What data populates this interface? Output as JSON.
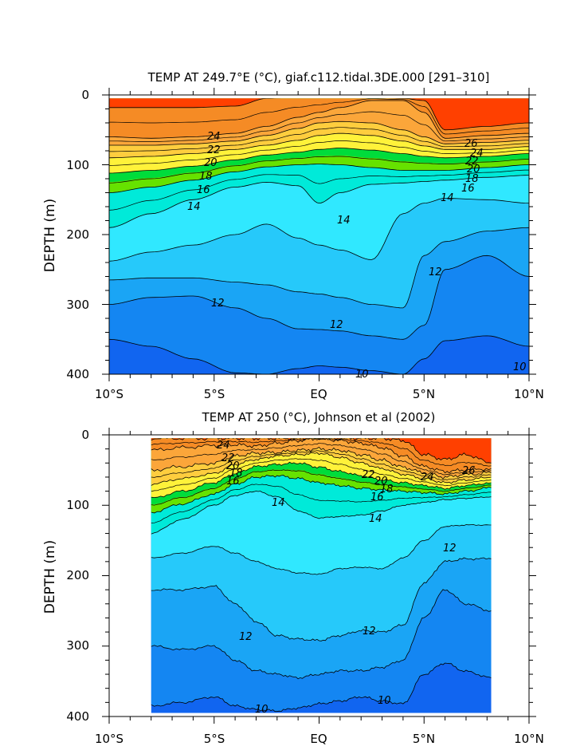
{
  "chart_data": [
    {
      "type": "contour",
      "title": "TEMP AT 249.7°E (°C), giaf.c112.tidal.3DE.000 [291–310]",
      "xlabel": "",
      "ylabel": "DEPTH (m)",
      "xlim": [
        -10,
        10
      ],
      "ylim": [
        0,
        400
      ],
      "y_inverted": true,
      "data_x_extent": [
        -10,
        10
      ],
      "data_depth_top": 5,
      "x_ticks": [
        -10,
        -5,
        0,
        5,
        10
      ],
      "x_tick_labels": [
        "10°S",
        "5°S",
        "EQ",
        "5°N",
        "10°N"
      ],
      "y_ticks": [
        0,
        100,
        200,
        300,
        400
      ],
      "y_tick_labels": [
        "0",
        "100",
        "200",
        "300",
        "400"
      ],
      "x_sections": [
        -10,
        -8,
        -6,
        -4,
        -2.5,
        -1,
        0,
        1,
        2.5,
        4,
        5,
        6,
        8,
        10
      ],
      "isotherms": [
        {
          "t": 26,
          "depth": [
            18,
            18,
            18,
            16,
            5,
            3,
            3,
            3,
            3,
            5,
            8,
            50,
            45,
            40
          ]
        },
        {
          "t": 24,
          "depth": [
            60,
            62,
            60,
            55,
            45,
            32,
            25,
            18,
            8,
            8,
            25,
            62,
            58,
            55
          ]
        },
        {
          "t": 22,
          "depth": [
            72,
            72,
            70,
            66,
            58,
            48,
            40,
            38,
            40,
            50,
            60,
            70,
            68,
            65
          ]
        },
        {
          "t": 20,
          "depth": [
            90,
            88,
            84,
            78,
            72,
            65,
            58,
            55,
            58,
            66,
            73,
            78,
            78,
            74
          ]
        },
        {
          "t": 18,
          "depth": [
            112,
            108,
            102,
            93,
            86,
            82,
            78,
            76,
            79,
            84,
            88,
            90,
            88,
            84
          ]
        },
        {
          "t": 16,
          "depth": [
            140,
            132,
            122,
            110,
            103,
            100,
            99,
            100,
            104,
            108,
            108,
            108,
            104,
            100
          ]
        },
        {
          "t": 14,
          "depth": [
            190,
            170,
            150,
            132,
            125,
            130,
            155,
            140,
            128,
            126,
            124,
            122,
            118,
            115
          ]
        },
        {
          "t": 13,
          "depth": [
            238,
            225,
            215,
            200,
            185,
            205,
            215,
            222,
            236,
            170,
            155,
            148,
            150,
            155
          ]
        },
        {
          "t": 12,
          "depth": [
            265,
            262,
            262,
            268,
            272,
            282,
            285,
            290,
            300,
            305,
            230,
            210,
            195,
            190
          ]
        },
        {
          "t": 11,
          "depth": [
            300,
            290,
            288,
            305,
            320,
            335,
            336,
            338,
            345,
            350,
            330,
            250,
            230,
            260
          ]
        },
        {
          "t": 10,
          "depth": [
            350,
            360,
            378,
            398,
            400,
            392,
            388,
            390,
            395,
            400,
            378,
            352,
            345,
            360
          ]
        }
      ],
      "contour_labels": [
        "24",
        "22",
        "20",
        "18",
        "16",
        "14",
        "26",
        "24",
        "22",
        "20",
        "18",
        "16",
        "14",
        "14",
        "12",
        "12",
        "12",
        "10",
        "10"
      ]
    },
    {
      "type": "contour",
      "title": "TEMP AT 250 (°C), Johnson et al (2002)",
      "xlabel": "",
      "ylabel": "DEPTH (m)",
      "xlim": [
        -10,
        10
      ],
      "ylim": [
        0,
        400
      ],
      "y_inverted": true,
      "data_x_extent": [
        -8,
        8.2
      ],
      "data_depth_top": 5,
      "data_depth_bottom": 395,
      "x_ticks": [
        -10,
        -5,
        0,
        5,
        10
      ],
      "x_tick_labels": [
        "10°S",
        "5°S",
        "EQ",
        "5°N",
        "10°N"
      ],
      "y_ticks": [
        0,
        100,
        200,
        300,
        400
      ],
      "y_tick_labels": [
        "0",
        "100",
        "200",
        "300",
        "400"
      ],
      "x_sections": [
        -8,
        -6.5,
        -5,
        -4,
        -3,
        -2,
        -1,
        0,
        1,
        2,
        3,
        4,
        5,
        6,
        7,
        8.2
      ],
      "isotherms": [
        {
          "t": 26,
          "depth": [
            5,
            5,
            5,
            5,
            5,
            5,
            5,
            5,
            5,
            5,
            5,
            8,
            28,
            35,
            28,
            40
          ],
          "wiggle": 3
        },
        {
          "t": 24,
          "depth": [
            22,
            18,
            15,
            14,
            16,
            12,
            8,
            5,
            8,
            12,
            18,
            30,
            45,
            52,
            50,
            48
          ],
          "wiggle": 3
        },
        {
          "t": 22,
          "depth": [
            50,
            45,
            40,
            30,
            26,
            25,
            22,
            20,
            22,
            28,
            36,
            46,
            54,
            60,
            56,
            54
          ],
          "wiggle": 3
        },
        {
          "t": 20,
          "depth": [
            70,
            62,
            55,
            42,
            35,
            30,
            28,
            26,
            32,
            40,
            48,
            56,
            62,
            68,
            64,
            60
          ],
          "wiggle": 2
        },
        {
          "t": 18,
          "depth": [
            90,
            80,
            68,
            55,
            45,
            42,
            40,
            46,
            52,
            58,
            64,
            68,
            72,
            76,
            72,
            68
          ],
          "wiggle": 2
        },
        {
          "t": 16,
          "depth": [
            110,
            98,
            84,
            70,
            60,
            58,
            62,
            68,
            72,
            76,
            78,
            80,
            82,
            84,
            80,
            75
          ],
          "wiggle": 2
        },
        {
          "t": 14,
          "depth": [
            140,
            120,
            100,
            86,
            80,
            88,
            108,
            118,
            116,
            114,
            108,
            100,
            96,
            92,
            90,
            88
          ],
          "wiggle": 1
        },
        {
          "t": 13,
          "depth": [
            175,
            168,
            158,
            168,
            180,
            190,
            196,
            198,
            190,
            188,
            190,
            175,
            150,
            130,
            128,
            128
          ],
          "wiggle": 1
        },
        {
          "t": 12,
          "depth": [
            220,
            220,
            215,
            240,
            265,
            285,
            290,
            292,
            285,
            278,
            280,
            270,
            210,
            180,
            176,
            176
          ],
          "wiggle": 2
        },
        {
          "t": 11,
          "depth": [
            300,
            305,
            300,
            320,
            335,
            340,
            345,
            340,
            335,
            335,
            330,
            320,
            260,
            220,
            240,
            250
          ],
          "wiggle": 2
        },
        {
          "t": 10,
          "depth": [
            385,
            380,
            372,
            385,
            390,
            392,
            388,
            382,
            378,
            372,
            378,
            382,
            340,
            324,
            336,
            345
          ],
          "wiggle": 2
        }
      ],
      "contour_labels": [
        "24",
        "22",
        "20",
        "18",
        "16",
        "14",
        "22",
        "20",
        "18",
        "16",
        "24",
        "26",
        "14",
        "12",
        "12",
        "12",
        "10",
        "10"
      ]
    }
  ],
  "colors": {
    "t26": "#ff4000",
    "t24": "#f58b25",
    "t22": "#fba63a",
    "t20": "#fecd3e",
    "t18": "#fff23a",
    "t16": "#66e200",
    "t15": "#00dc3b",
    "t14": "#00ead9",
    "t13": "#30e8ff",
    "t12": "#26c9fa",
    "t11": "#1aa5f5",
    "t10": "#1486f2",
    "tlow": "#1165f0"
  }
}
